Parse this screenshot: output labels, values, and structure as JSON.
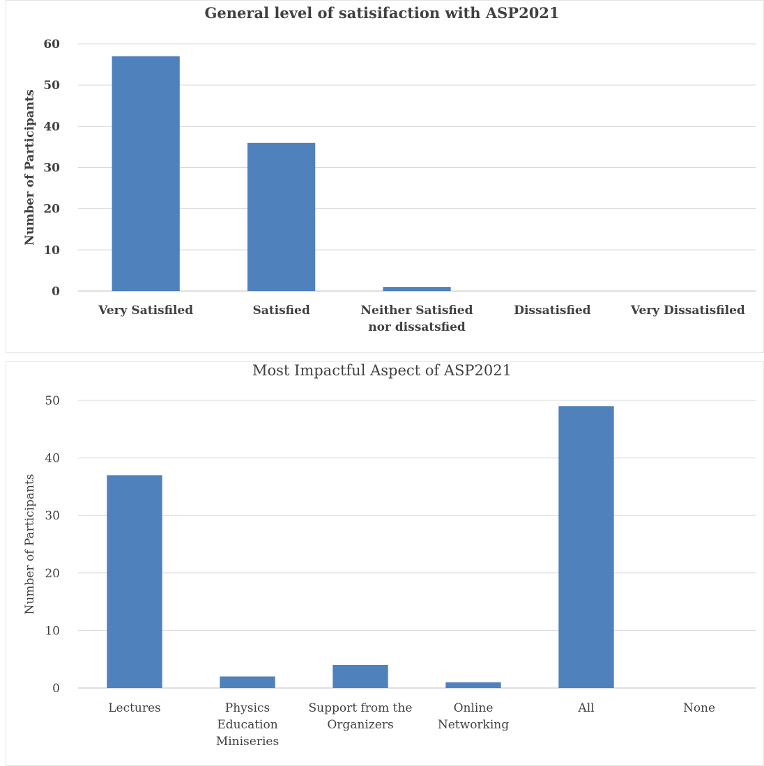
{
  "chart_data": [
    {
      "type": "bar",
      "title": "General level of satisifaction with ASP2021",
      "ylabel": "Number of Participants",
      "xlabel": "",
      "categories": [
        "Very Satisfiled",
        "Satisfied",
        "Neither Satisfied nor dissatsfied",
        "Dissatisfied",
        "Very Dissatisfiled"
      ],
      "category_lines": [
        [
          "Very Satisfiled"
        ],
        [
          "Satisfied"
        ],
        [
          "Neither Satisfied",
          "nor dissatsfied"
        ],
        [
          "Dissatisfied"
        ],
        [
          "Very Dissatisfiled"
        ]
      ],
      "values": [
        57,
        36,
        1,
        0,
        0
      ],
      "ylim": [
        0,
        60
      ],
      "yticks": [
        0,
        10,
        20,
        30,
        40,
        50,
        60
      ],
      "grid": true,
      "bar_color": "#4f81bd"
    },
    {
      "type": "bar",
      "title": "Most Impactful Aspect of ASP2021",
      "ylabel": "Number of Participants",
      "xlabel": "",
      "categories": [
        "Lectures",
        "Physics Education Miniseries",
        "Support from the Organizers",
        "Online Networking",
        "All",
        "None"
      ],
      "category_lines": [
        [
          "Lectures"
        ],
        [
          "Physics",
          "Education",
          "Miniseries"
        ],
        [
          "Support from the",
          "Organizers"
        ],
        [
          "Online",
          "Networking"
        ],
        [
          "All"
        ],
        [
          "None"
        ]
      ],
      "values": [
        37,
        2,
        4,
        1,
        49,
        0
      ],
      "ylim": [
        0,
        50
      ],
      "yticks": [
        0,
        10,
        20,
        30,
        40,
        50
      ],
      "grid": true,
      "bar_color": "#4f81bd"
    }
  ]
}
